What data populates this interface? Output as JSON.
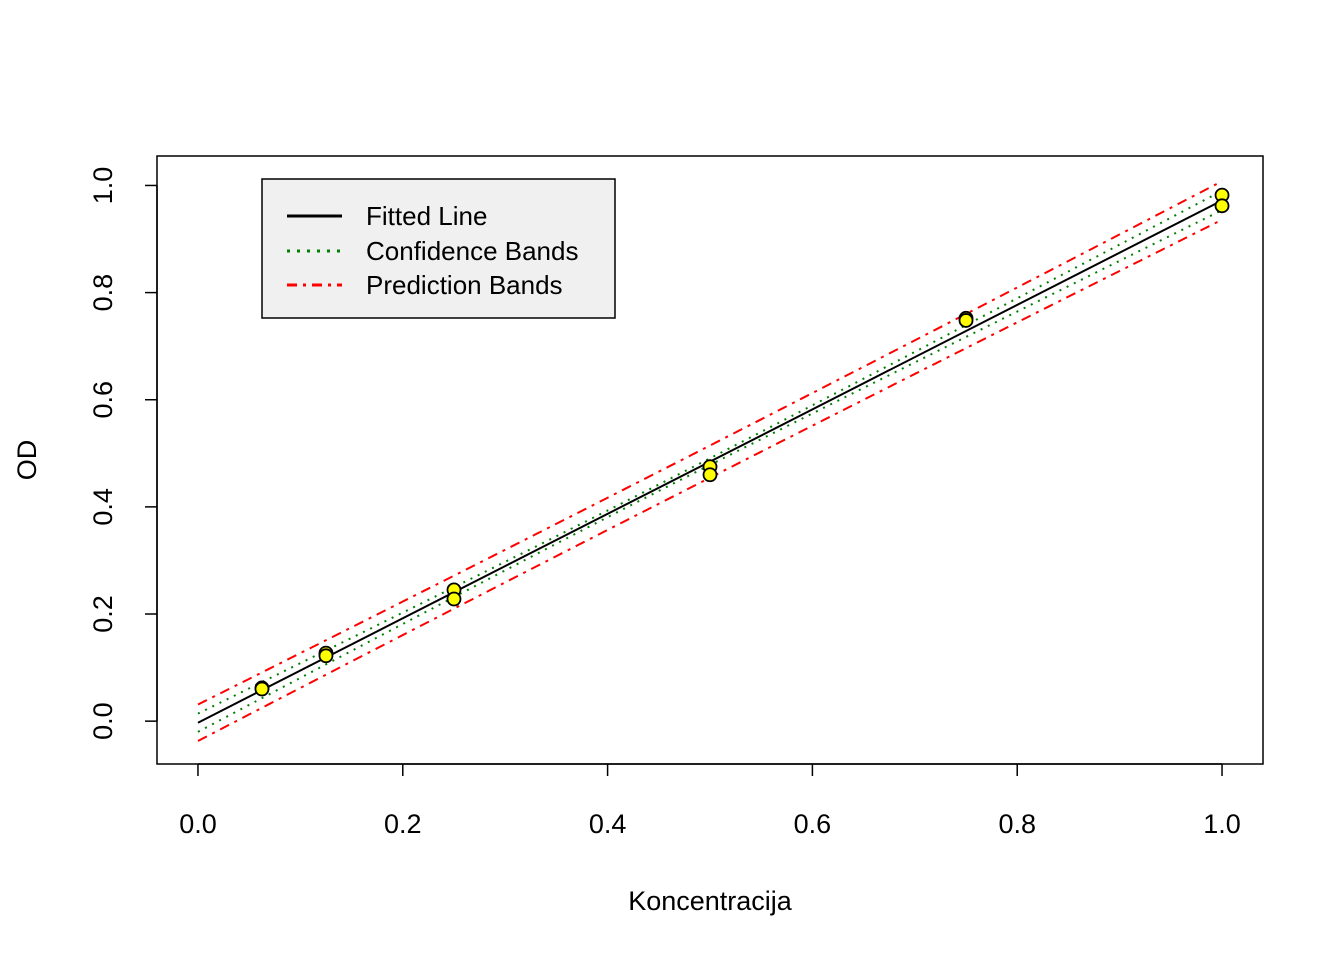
{
  "chart_data": {
    "type": "scatter",
    "xlabel": "Koncentracija",
    "ylabel": "OD",
    "xlim": [
      -0.04,
      1.04
    ],
    "ylim": [
      -0.08,
      1.055
    ],
    "x_ticks": [
      "0.0",
      "0.2",
      "0.4",
      "0.6",
      "0.8",
      "1.0"
    ],
    "y_ticks": [
      "0.0",
      "0.2",
      "0.4",
      "0.6",
      "0.8",
      "1.0"
    ],
    "legend": {
      "placement": "top-left",
      "entries": [
        {
          "label": "Fitted Line",
          "color": "#000000",
          "style": "solid"
        },
        {
          "label": "Confidence Bands",
          "color": "#008000",
          "style": "dotted"
        },
        {
          "label": "Prediction Bands",
          "color": "#ff0000",
          "style": "dashdot"
        }
      ]
    },
    "points": {
      "fill": "#ffff00",
      "stroke": "#000000",
      "x": [
        0.0625,
        0.0625,
        0.125,
        0.125,
        0.25,
        0.25,
        0.5,
        0.5,
        0.75,
        0.75,
        1.0,
        1.0
      ],
      "y": [
        0.062,
        0.06,
        0.127,
        0.122,
        0.245,
        0.228,
        0.475,
        0.46,
        0.752,
        0.748,
        0.982,
        0.962
      ]
    },
    "fitted_line": {
      "intercept": -0.003,
      "slope": 0.975,
      "x_range": [
        0.0,
        1.0
      ]
    },
    "confidence_band_halfwidth": {
      "at_x0": 0.017,
      "at_xmean": 0.006,
      "at_x1": 0.018,
      "x_mean": 0.448
    },
    "prediction_band_halfwidth": {
      "at_x0": 0.034,
      "at_xmean": 0.03,
      "at_x1": 0.036
    },
    "grid": false
  }
}
